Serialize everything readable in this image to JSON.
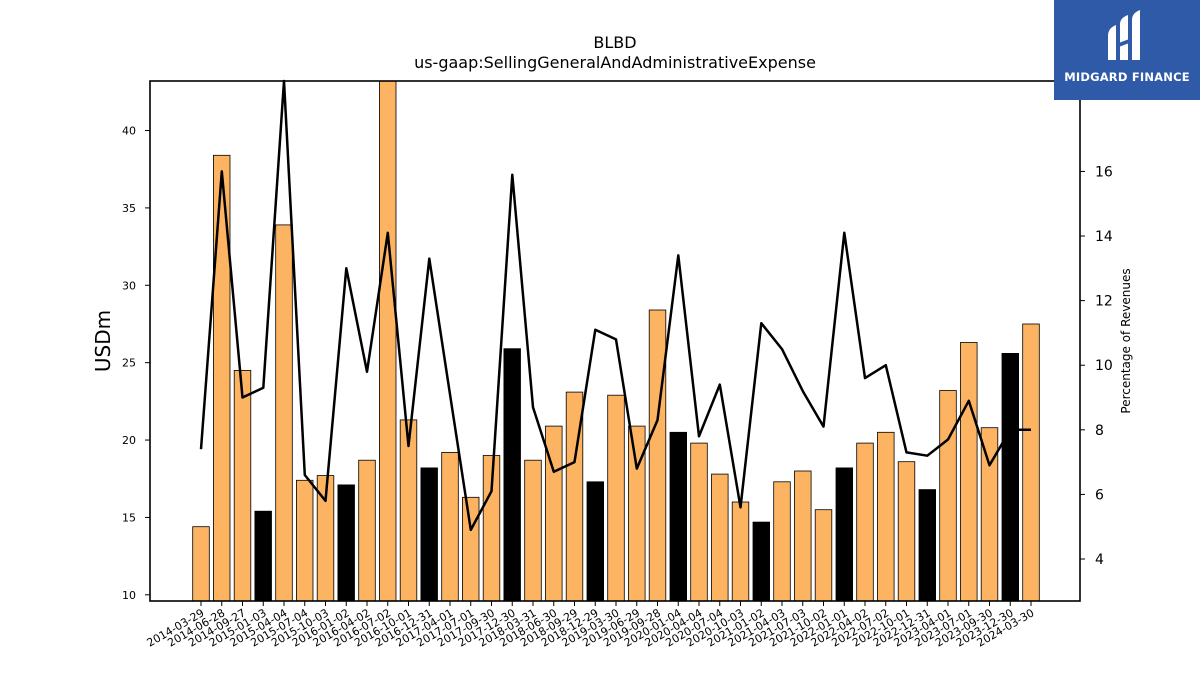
{
  "chart_data": {
    "type": "bar",
    "title": "BLBD",
    "subtitle": "us-gaap:SellingGeneralAndAdministrativeExpense",
    "ylabel": "USDm",
    "y2label": "Percentage of Revenues",
    "ylim": [
      9.6,
      43.2
    ],
    "y2lim": [
      2.7,
      18.8
    ],
    "yticks": [
      "10",
      "15",
      "20",
      "25",
      "30",
      "35",
      "40"
    ],
    "y2ticks": [
      "4",
      "6",
      "8",
      "10",
      "12",
      "14",
      "16"
    ],
    "categories": [
      "2014-03-29",
      "2014-06-28",
      "2014-09-27",
      "2015-01-03",
      "2015-04-04",
      "2015-07-04",
      "2015-10-03",
      "2016-01-02",
      "2016-04-02",
      "2016-07-02",
      "2016-10-01",
      "2016-12-31",
      "2017-04-01",
      "2017-07-01",
      "2017-09-30",
      "2017-12-30",
      "2018-03-31",
      "2018-06-30",
      "2018-09-29",
      "2018-12-29",
      "2019-03-30",
      "2019-06-29",
      "2019-09-28",
      "2020-01-04",
      "2020-04-04",
      "2020-07-04",
      "2020-10-03",
      "2021-01-02",
      "2021-04-03",
      "2021-07-03",
      "2021-10-02",
      "2022-01-01",
      "2022-04-02",
      "2022-07-02",
      "2022-10-01",
      "2022-12-31",
      "2023-04-01",
      "2023-07-01",
      "2023-09-30",
      "2023-12-30",
      "2024-03-30"
    ],
    "series": [
      {
        "name": "",
        "kind": "bar",
        "values": [
          14.4,
          38.4,
          24.5,
          15.4,
          33.9,
          17.4,
          17.7,
          17.1,
          18.7,
          43.2,
          21.3,
          18.2,
          19.2,
          16.3,
          19.0,
          25.9,
          18.7,
          20.9,
          23.1,
          17.3,
          22.9,
          20.9,
          28.4,
          20.5,
          19.8,
          17.8,
          16.0,
          14.7,
          17.3,
          18.0,
          15.5,
          18.2,
          19.8,
          20.5,
          18.6,
          16.8,
          23.2,
          26.3,
          20.8,
          25.6,
          27.5
        ],
        "colors": [
          "#fdb462",
          "#fdb462",
          "#fdb462",
          "#000000",
          "#fdb462",
          "#fdb462",
          "#fdb462",
          "#000000",
          "#fdb462",
          "#fdb462",
          "#fdb462",
          "#000000",
          "#fdb462",
          "#fdb462",
          "#fdb462",
          "#000000",
          "#fdb462",
          "#fdb462",
          "#fdb462",
          "#000000",
          "#fdb462",
          "#fdb462",
          "#fdb462",
          "#000000",
          "#fdb462",
          "#fdb462",
          "#fdb462",
          "#000000",
          "#fdb462",
          "#fdb462",
          "#fdb462",
          "#000000",
          "#fdb462",
          "#fdb462",
          "#fdb462",
          "#000000",
          "#fdb462",
          "#fdb462",
          "#fdb462",
          "#000000",
          "#fdb462"
        ]
      },
      {
        "name": "",
        "kind": "line",
        "axis": "right",
        "color": "#000000",
        "values": [
          7.4,
          16.0,
          9.0,
          9.3,
          18.8,
          6.6,
          5.8,
          13.0,
          9.8,
          14.1,
          7.5,
          13.3,
          9.1,
          4.9,
          6.1,
          15.9,
          8.7,
          6.7,
          7.0,
          11.1,
          10.8,
          6.8,
          8.3,
          13.4,
          7.8,
          9.4,
          5.6,
          11.3,
          10.5,
          9.2,
          8.1,
          14.1,
          9.6,
          10.0,
          7.3,
          7.2,
          7.7,
          8.9,
          6.9,
          8.0,
          8.0
        ]
      }
    ],
    "grid": false,
    "legend": "none"
  },
  "logo": {
    "name": "midgard-finance-logo",
    "text": "MIDGARD FINANCE"
  }
}
